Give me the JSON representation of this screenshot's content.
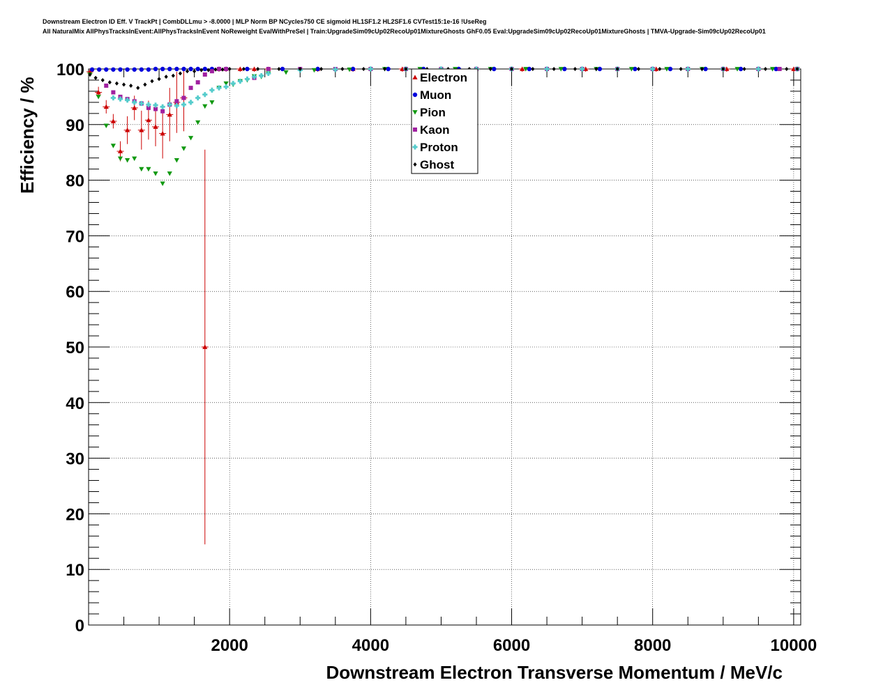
{
  "title_lines": [
    "Downstream Electron ID Eff. V TrackPt | CombDLLmu > -8.0000 | MLP Norm BP NCycles750 CE sigmoid HL1SF1.2 HL2SF1.6 CVTest15:1e-16 !UseReg",
    "All NaturalMix AllPhysTracksInEvent:AllPhysTracksInEvent NoReweight EvalWithPreSel | Train:UpgradeSim09cUp02RecoUp01MixtureGhosts GhF0.05 Eval:UpgradeSim09cUp02RecoUp01MixtureGhosts | TMVA-Upgrade-Sim09cUp02RecoUp01"
  ],
  "chart_data": {
    "type": "scatter",
    "xlabel": "Downstream Electron Transverse Momentum / MeV/c",
    "ylabel": "Efficiency / %",
    "xlim": [
      0,
      10100
    ],
    "ylim": [
      0,
      100
    ],
    "xticks": [
      2000,
      4000,
      6000,
      8000,
      10000
    ],
    "yticks": [
      0,
      10,
      20,
      30,
      40,
      50,
      60,
      70,
      80,
      90,
      100
    ],
    "grid": true,
    "legend_position": "top-center",
    "series": [
      {
        "name": "Electron",
        "color": "#cc0000",
        "marker": "triangle-up",
        "points": [
          {
            "x": 20,
            "y": 99.5,
            "err": 0.5
          },
          {
            "x": 140,
            "y": 95.8,
            "err": 1.0
          },
          {
            "x": 250,
            "y": 93.2,
            "err": 1.2
          },
          {
            "x": 350,
            "y": 90.6,
            "err": 1.3
          },
          {
            "x": 450,
            "y": 85.2,
            "err": 1.8
          },
          {
            "x": 550,
            "y": 89.0,
            "err": 2.5
          },
          {
            "x": 650,
            "y": 93.0,
            "err": 2.2
          },
          {
            "x": 750,
            "y": 89.0,
            "err": 3.5
          },
          {
            "x": 850,
            "y": 90.8,
            "err": 3.5
          },
          {
            "x": 950,
            "y": 89.6,
            "err": 3.5
          },
          {
            "x": 1050,
            "y": 88.4,
            "err": 4.5
          },
          {
            "x": 1150,
            "y": 91.8,
            "err": 4.8
          },
          {
            "x": 1250,
            "y": 94.0,
            "err": 5.5
          },
          {
            "x": 1350,
            "y": 94.8,
            "err": 6.0
          },
          {
            "x": 1650,
            "y": 50.0,
            "err": 35.5
          },
          {
            "x": 1850,
            "y": 100.0,
            "err": 0.5
          },
          {
            "x": 1950,
            "y": 100.0,
            "err": 0.5
          },
          {
            "x": 2150,
            "y": 100.0,
            "err": 0.5
          },
          {
            "x": 2350,
            "y": 100.0,
            "err": 0.5
          },
          {
            "x": 2550,
            "y": 100.0,
            "err": 0.5
          },
          {
            "x": 3250,
            "y": 100.0,
            "err": 0.5
          },
          {
            "x": 3750,
            "y": 100.0,
            "err": 0.5
          },
          {
            "x": 4450,
            "y": 100.0,
            "err": 0.5
          },
          {
            "x": 5250,
            "y": 100.0,
            "err": 0.5
          },
          {
            "x": 6150,
            "y": 100.0,
            "err": 0.5
          },
          {
            "x": 7050,
            "y": 100.0,
            "err": 0.5
          },
          {
            "x": 8050,
            "y": 100.0,
            "err": 0.5
          },
          {
            "x": 9050,
            "y": 100.0,
            "err": 0.5
          },
          {
            "x": 10000,
            "y": 100.0,
            "err": 0.5
          }
        ]
      },
      {
        "name": "Muon",
        "color": "#0000dd",
        "marker": "circle",
        "points": [
          {
            "x": 50,
            "y": 99.9
          },
          {
            "x": 150,
            "y": 99.9
          },
          {
            "x": 250,
            "y": 99.9
          },
          {
            "x": 350,
            "y": 99.9
          },
          {
            "x": 450,
            "y": 99.9
          },
          {
            "x": 550,
            "y": 99.9
          },
          {
            "x": 650,
            "y": 99.9
          },
          {
            "x": 750,
            "y": 99.9
          },
          {
            "x": 850,
            "y": 99.9
          },
          {
            "x": 950,
            "y": 100
          },
          {
            "x": 1050,
            "y": 100
          },
          {
            "x": 1150,
            "y": 100
          },
          {
            "x": 1250,
            "y": 100
          },
          {
            "x": 1350,
            "y": 100
          },
          {
            "x": 1450,
            "y": 100
          },
          {
            "x": 1550,
            "y": 100
          },
          {
            "x": 1650,
            "y": 100
          },
          {
            "x": 1750,
            "y": 100
          },
          {
            "x": 1850,
            "y": 100
          },
          {
            "x": 1950,
            "y": 100
          },
          {
            "x": 2250,
            "y": 100
          },
          {
            "x": 2750,
            "y": 100
          },
          {
            "x": 3250,
            "y": 100
          },
          {
            "x": 3750,
            "y": 100
          },
          {
            "x": 4250,
            "y": 100
          },
          {
            "x": 4750,
            "y": 100
          },
          {
            "x": 5250,
            "y": 100
          },
          {
            "x": 5750,
            "y": 100
          },
          {
            "x": 6250,
            "y": 100
          },
          {
            "x": 6750,
            "y": 100
          },
          {
            "x": 7250,
            "y": 100
          },
          {
            "x": 7750,
            "y": 100
          },
          {
            "x": 8250,
            "y": 100
          },
          {
            "x": 8750,
            "y": 100
          },
          {
            "x": 9250,
            "y": 100
          },
          {
            "x": 9750,
            "y": 100
          },
          {
            "x": 10050,
            "y": 100
          }
        ]
      },
      {
        "name": "Pion",
        "color": "#119911",
        "marker": "triangle-down",
        "points": [
          {
            "x": 20,
            "y": 99.0
          },
          {
            "x": 140,
            "y": 95.0
          },
          {
            "x": 250,
            "y": 89.8
          },
          {
            "x": 350,
            "y": 86.2
          },
          {
            "x": 450,
            "y": 83.9
          },
          {
            "x": 550,
            "y": 83.6
          },
          {
            "x": 650,
            "y": 83.9
          },
          {
            "x": 750,
            "y": 82.0
          },
          {
            "x": 850,
            "y": 82.0
          },
          {
            "x": 950,
            "y": 81.2
          },
          {
            "x": 1050,
            "y": 79.4
          },
          {
            "x": 1150,
            "y": 81.2
          },
          {
            "x": 1250,
            "y": 83.6
          },
          {
            "x": 1350,
            "y": 85.7
          },
          {
            "x": 1450,
            "y": 87.6
          },
          {
            "x": 1550,
            "y": 90.4
          },
          {
            "x": 1650,
            "y": 93.3
          },
          {
            "x": 1750,
            "y": 94.0
          },
          {
            "x": 1850,
            "y": 96.6
          },
          {
            "x": 1950,
            "y": 97.4
          },
          {
            "x": 2050,
            "y": 97.2
          },
          {
            "x": 2150,
            "y": 97.8
          },
          {
            "x": 2250,
            "y": 98.0
          },
          {
            "x": 2350,
            "y": 98.7
          },
          {
            "x": 2450,
            "y": 98.6
          },
          {
            "x": 2550,
            "y": 99.2
          },
          {
            "x": 2800,
            "y": 99.4
          },
          {
            "x": 3200,
            "y": 99.8
          },
          {
            "x": 3700,
            "y": 99.9
          },
          {
            "x": 4200,
            "y": 100
          },
          {
            "x": 4700,
            "y": 100
          },
          {
            "x": 5200,
            "y": 100
          },
          {
            "x": 5700,
            "y": 100
          },
          {
            "x": 6200,
            "y": 100
          },
          {
            "x": 6700,
            "y": 100
          },
          {
            "x": 7200,
            "y": 100
          },
          {
            "x": 7700,
            "y": 100
          },
          {
            "x": 8200,
            "y": 100
          },
          {
            "x": 8700,
            "y": 100
          },
          {
            "x": 9200,
            "y": 100
          },
          {
            "x": 9700,
            "y": 100
          },
          {
            "x": 10050,
            "y": 100
          }
        ]
      },
      {
        "name": "Kaon",
        "color": "#a020a0",
        "marker": "square",
        "points": [
          {
            "x": 250,
            "y": 97.0
          },
          {
            "x": 350,
            "y": 95.8
          },
          {
            "x": 450,
            "y": 95.0
          },
          {
            "x": 550,
            "y": 94.6
          },
          {
            "x": 650,
            "y": 94.2
          },
          {
            "x": 750,
            "y": 93.8
          },
          {
            "x": 850,
            "y": 93.0
          },
          {
            "x": 950,
            "y": 92.8
          },
          {
            "x": 1050,
            "y": 92.4
          },
          {
            "x": 1150,
            "y": 93.6
          },
          {
            "x": 1250,
            "y": 94.2
          },
          {
            "x": 1350,
            "y": 94.8
          },
          {
            "x": 1450,
            "y": 96.6
          },
          {
            "x": 1550,
            "y": 97.6
          },
          {
            "x": 1650,
            "y": 99.0
          },
          {
            "x": 1750,
            "y": 99.6
          },
          {
            "x": 1850,
            "y": 100
          },
          {
            "x": 1950,
            "y": 100
          },
          {
            "x": 2350,
            "y": 98.4
          },
          {
            "x": 2550,
            "y": 100
          },
          {
            "x": 3000,
            "y": 100
          },
          {
            "x": 3500,
            "y": 100
          },
          {
            "x": 4000,
            "y": 100
          },
          {
            "x": 4500,
            "y": 100
          },
          {
            "x": 5000,
            "y": 100
          },
          {
            "x": 5500,
            "y": 100
          },
          {
            "x": 6000,
            "y": 100
          },
          {
            "x": 6500,
            "y": 100
          },
          {
            "x": 7000,
            "y": 100
          },
          {
            "x": 7500,
            "y": 100
          },
          {
            "x": 8000,
            "y": 100
          },
          {
            "x": 8500,
            "y": 100
          },
          {
            "x": 9000,
            "y": 100
          },
          {
            "x": 9500,
            "y": 100
          },
          {
            "x": 9800,
            "y": 100
          },
          {
            "x": 10050,
            "y": 100
          }
        ]
      },
      {
        "name": "Proton",
        "color": "#55cccc",
        "marker": "cross",
        "points": [
          {
            "x": 350,
            "y": 94.8
          },
          {
            "x": 450,
            "y": 94.6
          },
          {
            "x": 550,
            "y": 94.4
          },
          {
            "x": 650,
            "y": 94.0
          },
          {
            "x": 750,
            "y": 93.8
          },
          {
            "x": 850,
            "y": 93.6
          },
          {
            "x": 950,
            "y": 93.5
          },
          {
            "x": 1050,
            "y": 93.2
          },
          {
            "x": 1150,
            "y": 93.6
          },
          {
            "x": 1250,
            "y": 93.4
          },
          {
            "x": 1350,
            "y": 93.6
          },
          {
            "x": 1450,
            "y": 94.0
          },
          {
            "x": 1550,
            "y": 94.8
          },
          {
            "x": 1650,
            "y": 95.4
          },
          {
            "x": 1750,
            "y": 96.2
          },
          {
            "x": 1850,
            "y": 96.6
          },
          {
            "x": 1950,
            "y": 96.8
          },
          {
            "x": 2050,
            "y": 97.4
          },
          {
            "x": 2150,
            "y": 97.8
          },
          {
            "x": 2250,
            "y": 98.2
          },
          {
            "x": 2350,
            "y": 98.6
          },
          {
            "x": 2450,
            "y": 98.8
          },
          {
            "x": 2550,
            "y": 99.2
          },
          {
            "x": 3000,
            "y": 99.8
          },
          {
            "x": 3500,
            "y": 99.9
          },
          {
            "x": 4000,
            "y": 100
          },
          {
            "x": 4500,
            "y": 100
          },
          {
            "x": 5000,
            "y": 100
          },
          {
            "x": 5500,
            "y": 100
          },
          {
            "x": 6000,
            "y": 100
          },
          {
            "x": 6500,
            "y": 100
          },
          {
            "x": 7000,
            "y": 100
          },
          {
            "x": 7500,
            "y": 100
          },
          {
            "x": 8000,
            "y": 100
          },
          {
            "x": 8500,
            "y": 100
          },
          {
            "x": 9000,
            "y": 100
          },
          {
            "x": 9500,
            "y": 100
          },
          {
            "x": 10050,
            "y": 100
          }
        ]
      },
      {
        "name": "Ghost",
        "color": "#000000",
        "marker": "diamond",
        "points": [
          {
            "x": 20,
            "y": 99.0
          },
          {
            "x": 100,
            "y": 98.4
          },
          {
            "x": 200,
            "y": 98.0
          },
          {
            "x": 300,
            "y": 97.6
          },
          {
            "x": 400,
            "y": 97.4
          },
          {
            "x": 500,
            "y": 97.2
          },
          {
            "x": 600,
            "y": 97.0
          },
          {
            "x": 700,
            "y": 96.6
          },
          {
            "x": 800,
            "y": 97.2
          },
          {
            "x": 900,
            "y": 97.8
          },
          {
            "x": 1000,
            "y": 98.2
          },
          {
            "x": 1100,
            "y": 98.6
          },
          {
            "x": 1200,
            "y": 98.8
          },
          {
            "x": 1300,
            "y": 99.2
          },
          {
            "x": 1400,
            "y": 99.6
          },
          {
            "x": 1500,
            "y": 99.6
          },
          {
            "x": 1600,
            "y": 99.8
          },
          {
            "x": 1700,
            "y": 99.8
          },
          {
            "x": 1800,
            "y": 99.9
          },
          {
            "x": 1900,
            "y": 99.9
          },
          {
            "x": 2000,
            "y": 100
          },
          {
            "x": 2200,
            "y": 100
          },
          {
            "x": 2400,
            "y": 100
          },
          {
            "x": 2700,
            "y": 100
          },
          {
            "x": 3000,
            "y": 100
          },
          {
            "x": 3300,
            "y": 100
          },
          {
            "x": 3600,
            "y": 100
          },
          {
            "x": 3900,
            "y": 100
          },
          {
            "x": 4200,
            "y": 100
          },
          {
            "x": 4500,
            "y": 100
          },
          {
            "x": 4800,
            "y": 100
          },
          {
            "x": 5100,
            "y": 100
          },
          {
            "x": 5400,
            "y": 100
          },
          {
            "x": 5700,
            "y": 100
          },
          {
            "x": 6000,
            "y": 100
          },
          {
            "x": 6300,
            "y": 100
          },
          {
            "x": 6600,
            "y": 100
          },
          {
            "x": 6900,
            "y": 100
          },
          {
            "x": 7200,
            "y": 100
          },
          {
            "x": 7500,
            "y": 100
          },
          {
            "x": 7800,
            "y": 100
          },
          {
            "x": 8100,
            "y": 100
          },
          {
            "x": 8400,
            "y": 100
          },
          {
            "x": 8700,
            "y": 100
          },
          {
            "x": 9000,
            "y": 100
          },
          {
            "x": 9300,
            "y": 100
          },
          {
            "x": 9600,
            "y": 100
          },
          {
            "x": 9900,
            "y": 100
          },
          {
            "x": 10050,
            "y": 100
          }
        ]
      }
    ]
  }
}
